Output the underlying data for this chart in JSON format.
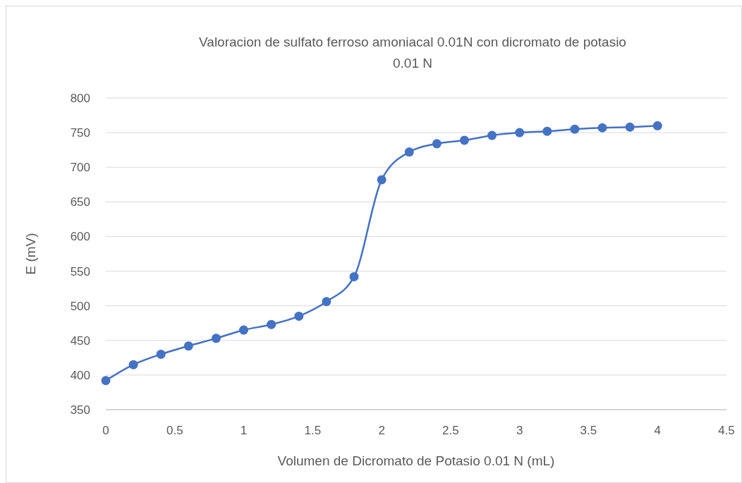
{
  "chart_data": {
    "type": "line",
    "title": "Valoracion de sulfato ferroso amoniacal 0.01N con dicromato de potasio 0.01 N",
    "xlabel": "Volumen de Dicromato de Potasio 0.01 N (mL)",
    "ylabel": "E (mV)",
    "x": [
      0,
      0.2,
      0.4,
      0.6,
      0.8,
      1,
      1.2,
      1.4,
      1.6,
      1.8,
      2,
      2.2,
      2.4,
      2.6,
      2.8,
      3,
      3.2,
      3.4,
      3.6,
      3.8,
      4
    ],
    "series": [
      {
        "color": "#4472c4",
        "values": [
          392,
          415,
          430,
          442,
          453,
          465,
          473,
          485,
          506,
          542,
          682,
          722,
          734,
          739,
          746,
          750,
          752,
          755,
          757,
          758,
          760
        ]
      }
    ],
    "xlim": [
      0,
      4.5
    ],
    "xticks": [
      0,
      0.5,
      1,
      1.5,
      2,
      2.5,
      3,
      3.5,
      4,
      4.5
    ],
    "ylim": [
      350,
      800
    ],
    "yticks": [
      350,
      400,
      450,
      500,
      550,
      600,
      650,
      700,
      750,
      800
    ],
    "grid": "y",
    "marker": "circle",
    "line_style": "solid"
  }
}
